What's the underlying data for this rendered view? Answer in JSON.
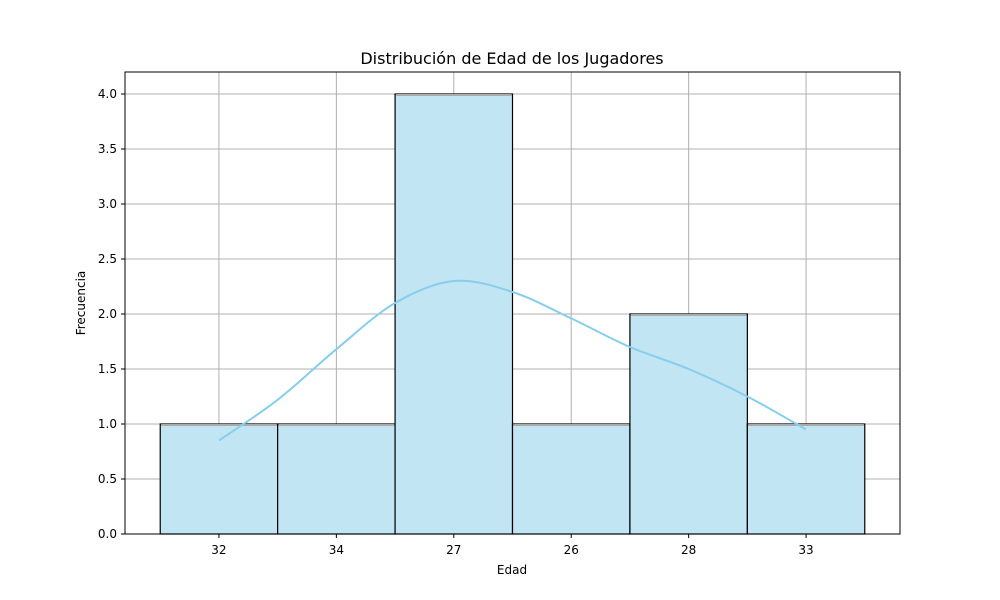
{
  "chart_data": {
    "type": "bar",
    "title": "Distribución de Edad de los Jugadores",
    "xlabel": "Edad",
    "ylabel": "Frecuencia",
    "categories": [
      "32",
      "34",
      "27",
      "26",
      "28",
      "33"
    ],
    "values": [
      1,
      1,
      4,
      1,
      2,
      1
    ],
    "ylim": [
      0,
      4.2
    ],
    "yticks": [
      "0.0",
      "0.5",
      "1.0",
      "1.5",
      "2.0",
      "2.5",
      "3.0",
      "3.5",
      "4.0"
    ],
    "grid": true,
    "kde": {
      "x": [
        0.0,
        0.5,
        1.0,
        1.5,
        2.0,
        2.5,
        3.0,
        3.5,
        4.0,
        4.5,
        5.0
      ],
      "y": [
        0.85,
        1.22,
        1.68,
        2.1,
        2.3,
        2.2,
        1.96,
        1.7,
        1.5,
        1.25,
        0.95
      ]
    },
    "colors": {
      "bar_fill": "#c2e5f4",
      "bar_edge": "#000000",
      "kde_line": "#87ceeb",
      "grid": "#b0b0b0"
    }
  }
}
